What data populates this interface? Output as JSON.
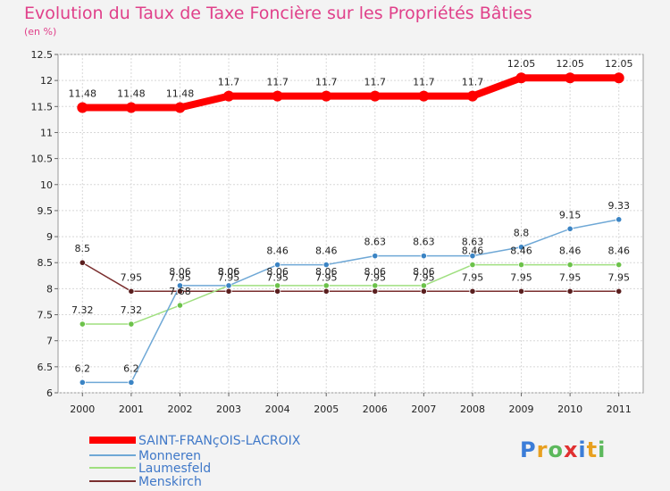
{
  "chart_data": {
    "type": "line",
    "title": "Evolution du Taux de Taxe Foncière sur les Propriétés Bâties",
    "ylabel": "(en %)",
    "xlabel": "",
    "ylim": [
      6,
      12.5
    ],
    "yticks": [
      "6",
      "6.5",
      "7",
      "7.5",
      "8",
      "8.5",
      "9",
      "9.5",
      "10",
      "10.5",
      "11",
      "11.5",
      "12",
      "12.5"
    ],
    "categories": [
      "2000",
      "2001",
      "2002",
      "2003",
      "2004",
      "2005",
      "2006",
      "2007",
      "2008",
      "2009",
      "2010",
      "2011"
    ],
    "series": [
      {
        "name": "SAINT-FRANçOIS-LACROIX",
        "color": "#ff0000",
        "values": [
          11.48,
          11.48,
          11.48,
          11.7,
          11.7,
          11.7,
          11.7,
          11.7,
          11.7,
          12.05,
          12.05,
          12.05
        ],
        "labels": [
          "11.48",
          "11.48",
          "11.48",
          "11.7",
          "11.7",
          "11.7",
          "11.7",
          "11.7",
          "11.7",
          "12.05",
          "12.05",
          "12.05"
        ]
      },
      {
        "name": "Monneren",
        "color": "#6fa8d6",
        "values": [
          6.2,
          6.2,
          8.06,
          8.06,
          8.46,
          8.46,
          8.63,
          8.63,
          8.63,
          8.8,
          9.15,
          9.33
        ],
        "labels": [
          "6.2",
          "6.2",
          "8.06",
          "8.06",
          "8.46",
          "8.46",
          "8.63",
          "8.63",
          "8.63",
          "8.8",
          "9.15",
          "9.33"
        ]
      },
      {
        "name": "Laumesfeld",
        "color": "#9fdf7f",
        "values": [
          7.32,
          7.32,
          7.68,
          8.06,
          8.06,
          8.06,
          8.06,
          8.06,
          8.46,
          8.46,
          8.46,
          8.46
        ],
        "labels": [
          "7.32",
          "7.32",
          "7.68",
          "8.06",
          "8.06",
          "8.06",
          "8.06",
          "8.06",
          "8.46",
          "8.46",
          "8.46",
          "8.46"
        ]
      },
      {
        "name": "Menskirch",
        "color": "#7a2e2e",
        "values": [
          8.5,
          7.95,
          7.95,
          7.95,
          7.95,
          7.95,
          7.95,
          7.95,
          7.95,
          7.95,
          7.95,
          7.95
        ],
        "labels": [
          "8.5",
          "7.95",
          "7.95",
          "7.95",
          "7.95",
          "7.95",
          "7.95",
          "7.95",
          "7.95",
          "7.95",
          "7.95",
          "7.95"
        ]
      }
    ],
    "legend_position": "bottom-left"
  },
  "logo": {
    "letters": [
      "P",
      "r",
      "o",
      "x",
      "i",
      "t",
      "i"
    ],
    "colors": [
      "#3b7dd8",
      "#e8a020",
      "#5cb85c",
      "#e03030",
      "#3b7dd8",
      "#e8a020",
      "#5cb85c"
    ]
  }
}
